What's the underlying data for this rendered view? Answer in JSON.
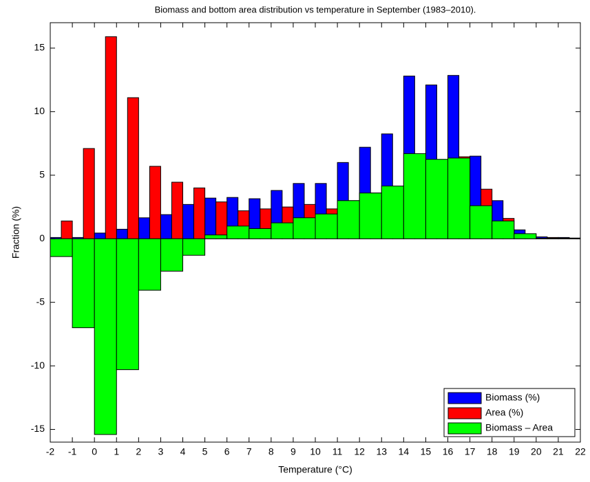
{
  "chart_data": {
    "type": "bar",
    "title": "Biomass and bottom area distribution vs temperature in September (1983–2010).",
    "xlabel": "Temperature (°C)",
    "ylabel": "Fraction (%)",
    "x": [
      -1.5,
      -0.5,
      0.5,
      1.5,
      2.5,
      3.5,
      4.5,
      5.5,
      6.5,
      7.5,
      8.5,
      9.5,
      10.5,
      11.5,
      12.5,
      13.5,
      14.5,
      15.5,
      16.5,
      17.5,
      18.5,
      19.5,
      20.5,
      21.5
    ],
    "series": [
      {
        "name": "Biomass (%)",
        "color": "#0000ff",
        "values": [
          0.1,
          0.1,
          0.45,
          0.75,
          1.65,
          1.9,
          2.7,
          3.2,
          3.25,
          3.15,
          3.8,
          4.35,
          4.35,
          6.0,
          7.2,
          8.25,
          12.8,
          12.1,
          12.85,
          6.5,
          3.0,
          0.7,
          0.15,
          0.1
        ]
      },
      {
        "name": "Area (%)",
        "color": "#ff0000",
        "values": [
          1.4,
          7.1,
          15.9,
          11.1,
          5.7,
          4.45,
          4.0,
          2.9,
          2.2,
          2.35,
          2.5,
          2.7,
          2.35,
          3.0,
          3.6,
          4.05,
          6.05,
          5.8,
          6.45,
          3.9,
          1.6,
          0.3,
          0.1,
          0.05
        ]
      },
      {
        "name": "Biomass – Area",
        "color": "#00ff00",
        "values": [
          -1.4,
          -7.0,
          -15.4,
          -10.3,
          -4.05,
          -2.55,
          -1.3,
          0.3,
          1.0,
          0.8,
          1.25,
          1.65,
          1.95,
          3.0,
          3.6,
          4.15,
          6.7,
          6.25,
          6.35,
          2.6,
          1.4,
          0.4,
          0.05,
          0.05
        ]
      }
    ],
    "xlim": [
      -2,
      22
    ],
    "xticks": [
      -2,
      -1,
      0,
      1,
      2,
      3,
      4,
      5,
      6,
      7,
      8,
      9,
      10,
      11,
      12,
      13,
      14,
      15,
      16,
      17,
      18,
      19,
      20,
      21,
      22
    ],
    "ylim": [
      -16,
      17
    ],
    "yticks": [
      -15,
      -10,
      -5,
      0,
      5,
      10,
      15
    ],
    "legend": "lower right"
  }
}
